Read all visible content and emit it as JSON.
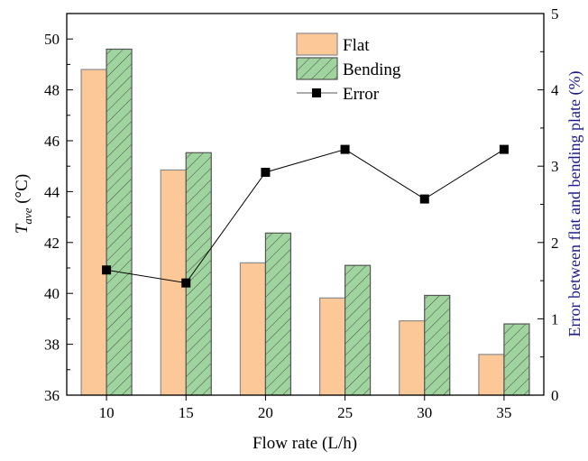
{
  "chart_data": {
    "type": "bar",
    "title": "",
    "xlabel": "Flow rate (L/h)",
    "ylabel_main": "T",
    "ylabel_sub": "ave",
    "ylabel_unit": " (°C)",
    "y2label": "Error between flat and bending plate (%)",
    "categories": [
      "10",
      "15",
      "20",
      "25",
      "30",
      "35"
    ],
    "ylim": [
      36,
      51
    ],
    "yticks": [
      36,
      38,
      40,
      42,
      44,
      46,
      48,
      50
    ],
    "y2lim": [
      0,
      5
    ],
    "y2ticks": [
      0,
      1,
      2,
      3,
      4,
      5
    ],
    "grid": false,
    "legend_position": "top-center",
    "series": [
      {
        "name": "Flat",
        "type": "bar",
        "axis": "left",
        "color": "#FCC898",
        "edge": "#8a8a8a",
        "values": [
          48.8,
          44.85,
          41.2,
          39.82,
          38.92,
          37.6
        ]
      },
      {
        "name": "Bending",
        "type": "bar",
        "axis": "left",
        "color": "#9FD49F",
        "edge": "#555555",
        "hatch": true,
        "values": [
          49.6,
          45.53,
          42.37,
          41.1,
          39.92,
          38.8
        ]
      },
      {
        "name": "Error",
        "type": "line",
        "axis": "right",
        "color": "#000000",
        "values": [
          1.64,
          1.47,
          2.92,
          3.22,
          2.57,
          3.22
        ]
      }
    ]
  }
}
